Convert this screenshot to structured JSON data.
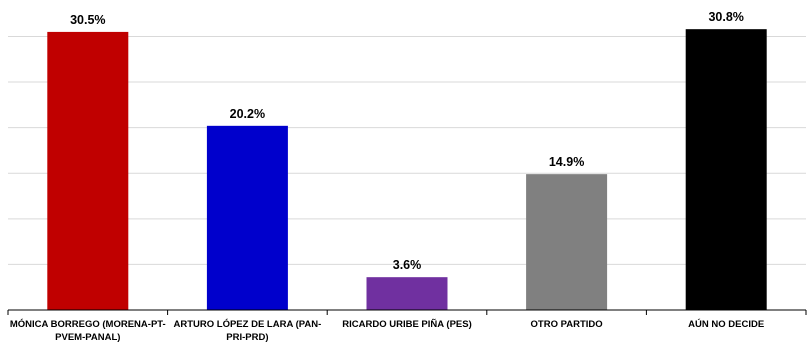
{
  "chart_data": {
    "type": "bar",
    "categories": [
      "MÓNICA BORREGO (MORENA-PT-PVEM-PANAL)",
      "ARTURO LÓPEZ DE LARA (PAN-PRI-PRD)",
      "RICARDO URIBE PIÑA (PES)",
      "OTRO PARTIDO",
      "AÚN NO DECIDE"
    ],
    "values": [
      30.5,
      20.2,
      3.6,
      14.9,
      30.8
    ],
    "value_labels": [
      "30.5%",
      "20.2%",
      "3.6%",
      "14.9%",
      "30.8%"
    ],
    "colors": [
      "#c00000",
      "#0000cc",
      "#7030a0",
      "#808080",
      "#000000"
    ],
    "ylim": [
      0,
      34
    ],
    "grid": true,
    "legend": "none"
  }
}
